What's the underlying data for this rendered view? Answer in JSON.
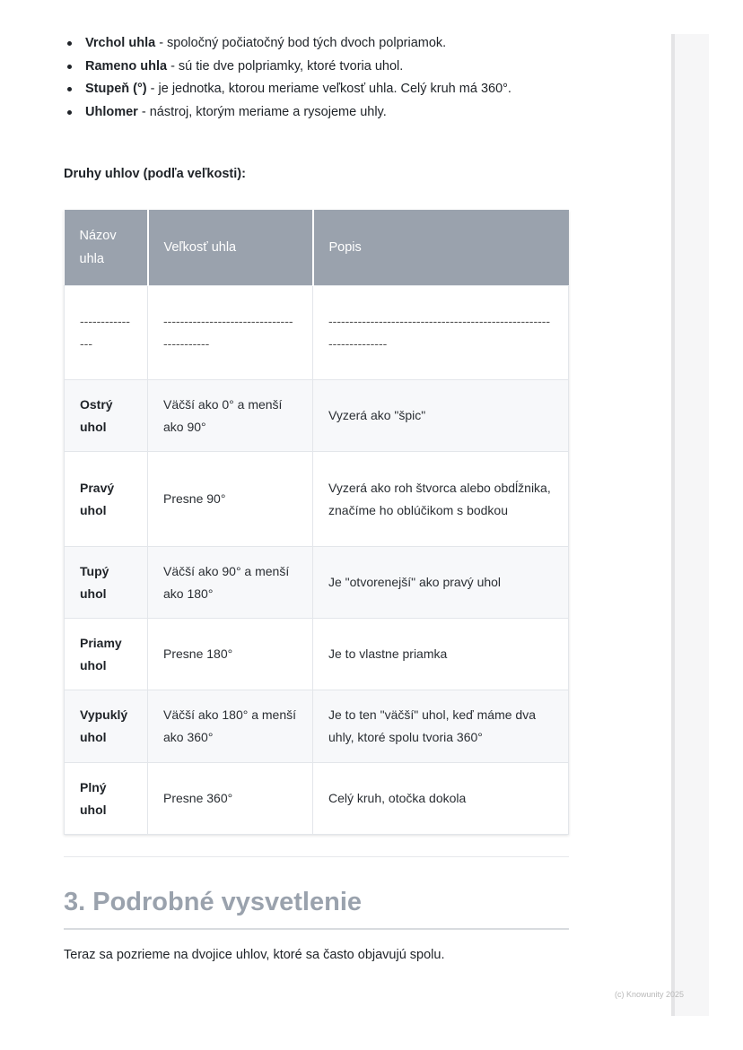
{
  "definitions": [
    {
      "term": "Vrchol uhla",
      "text": " - spoločný počiatočný bod tých dvoch polpriamok."
    },
    {
      "term": "Rameno uhla",
      "text": " - sú tie dve polpriamky, ktoré tvoria uhol."
    },
    {
      "term": "Stupeň (°)",
      "text": " - je jednotka, ktorou meriame veľkosť uhla. Celý kruh má 360°."
    },
    {
      "term": "Uhlomer",
      "text": " - nástroj, ktorým meriame a rysojeme uhly."
    }
  ],
  "subheading": "Druhy uhlov (podľa veľkosti):",
  "table": {
    "headers": [
      "Názov uhla",
      "Veľkosť uhla",
      "Popis"
    ],
    "separator": [
      "---------------",
      "------------------------------------------",
      "-------------------------------------------------------------------"
    ],
    "rows": [
      [
        "Ostrý uhol",
        "Väčší ako 0° a menší ako 90°",
        "Vyzerá ako \"špic\""
      ],
      [
        "Pravý uhol",
        "Presne 90°",
        "Vyzerá ako roh štvorca alebo obdĺžnika, značíme ho oblúčikom s bodkou"
      ],
      [
        "Tupý uhol",
        "Väčší ako 90° a menší ako 180°",
        "Je \"otvorenejší\" ako pravý uhol"
      ],
      [
        "Priamy uhol",
        "Presne 180°",
        "Je to vlastne priamka"
      ],
      [
        "Vypuklý uhol",
        "Väčší ako 180° a menší ako 360°",
        "Je to ten \"väčší\" uhol, keď máme dva uhly, ktoré spolu tvoria 360°"
      ],
      [
        "Plný uhol",
        "Presne 360°",
        "Celý kruh, otočka dokola"
      ]
    ]
  },
  "section_heading": "3. Podrobné vysvetlenie",
  "paragraph": "Teraz sa pozrieme na dvojice uhlov, ktoré sa často objavujú spolu.",
  "footer": "(c) Knowunity 2025"
}
